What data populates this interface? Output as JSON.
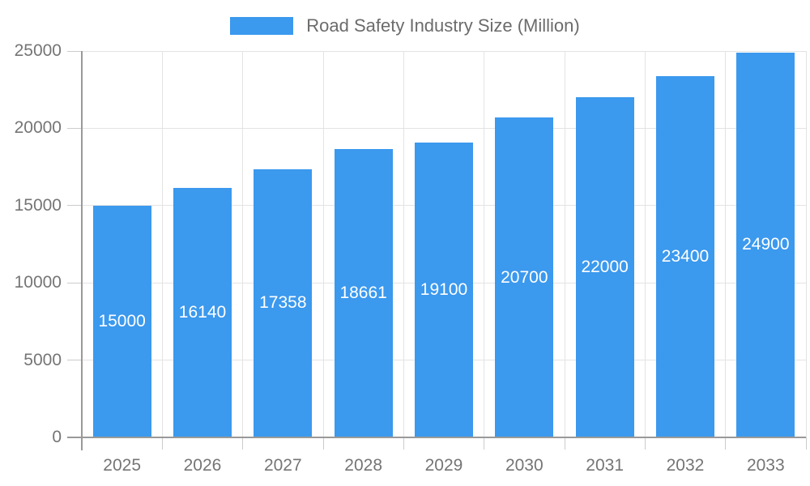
{
  "chart_data": {
    "type": "bar",
    "title": "",
    "legend": "Road Safety Industry Size (Million)",
    "legend_position": "top-center",
    "categories": [
      "2025",
      "2026",
      "2027",
      "2028",
      "2029",
      "2030",
      "2031",
      "2032",
      "2033"
    ],
    "values": [
      15000,
      16140,
      17358,
      18661,
      19100,
      20700,
      22000,
      23400,
      24900
    ],
    "value_labels": [
      "15000",
      "16140",
      "17358",
      "18661",
      "19100",
      "20700",
      "22000",
      "23400",
      "24900"
    ],
    "xlabel": "",
    "ylabel": "",
    "ylim": [
      0,
      25000
    ],
    "ytick_step": 5000,
    "yticks": [
      "0",
      "5000",
      "10000",
      "15000",
      "20000",
      "25000"
    ],
    "grid": true,
    "colors": {
      "bar": "#3b99ee",
      "grid": "#e3e3e3",
      "axis": "#999999",
      "minor_tick": "#cccccc",
      "tick_text": "#757575",
      "legend_text": "#6b6b6b",
      "value_text": "#ffffff",
      "background": "#ffffff"
    }
  }
}
